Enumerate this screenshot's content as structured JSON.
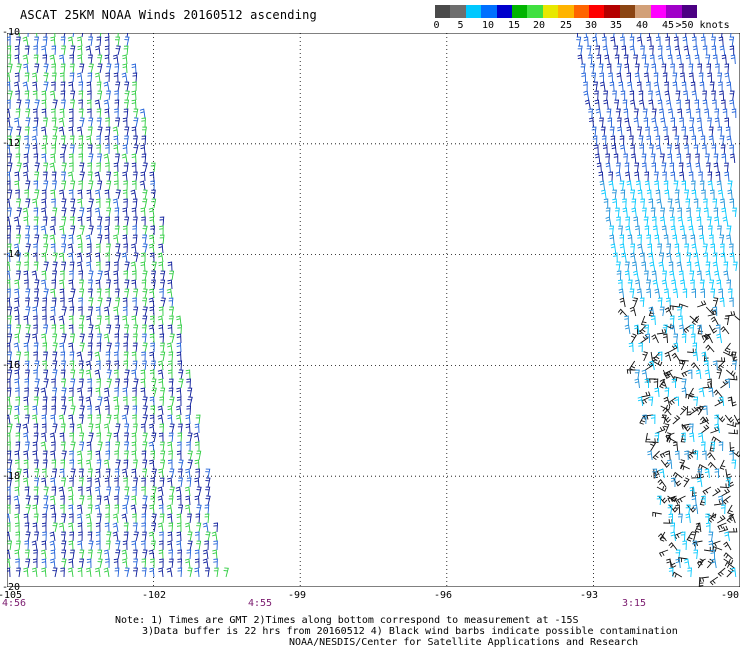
{
  "title": "ASCAT 25KM NOAA Winds 20160512 ascending",
  "legend": {
    "colors": [
      "#4a4a4a",
      "#6e6e6e",
      "#00c8ff",
      "#0070ff",
      "#0000cc",
      "#00b400",
      "#40e040",
      "#e8e800",
      "#ffb400",
      "#ff6400",
      "#ff0000",
      "#b40000",
      "#8b4513",
      "#d2a078",
      "#ff00ff",
      "#a000c8",
      "#4b0082"
    ],
    "labels": [
      "0",
      "5",
      "10",
      "15",
      "20",
      "25",
      "30",
      "35",
      "40",
      "45",
      ">50 knots"
    ]
  },
  "axes": {
    "y_ticks": [
      "-10",
      "-12",
      "-14",
      "-16",
      "-18",
      "-20"
    ],
    "x_ticks": [
      "-105",
      "-102",
      "-99",
      "-96",
      "-93",
      "-90"
    ]
  },
  "times": [
    "4:56",
    "4:55",
    "3:15"
  ],
  "notes": [
    "Note: 1) Times are GMT 2)Times along bottom correspond to measurement at -15S",
    "3)Data buffer is 22 hrs from 20160512 4) Black wind barbs indicate possible contamination",
    "NOAA/NESDIS/Center for Satellite Applications and Research"
  ],
  "map_data": {
    "lon_range": [
      -105,
      -90
    ],
    "lat_range": [
      -20,
      -10
    ],
    "grid_lines": "dotted",
    "swaths": [
      {
        "name": "west swath",
        "lon_top_west": -105,
        "lon_top_east": -102.4,
        "lon_bottom_west": -105,
        "lon_bottom_east": -100.4,
        "dominant_colors": [
          "navy",
          "green",
          "blue"
        ]
      },
      {
        "name": "east swath",
        "lon_top_west": -93.4,
        "lon_top_east": -90,
        "lon_bottom_west": -91.4,
        "lon_bottom_east": -90,
        "dominant_colors": [
          "blue",
          "light blue",
          "black"
        ]
      }
    ]
  }
}
